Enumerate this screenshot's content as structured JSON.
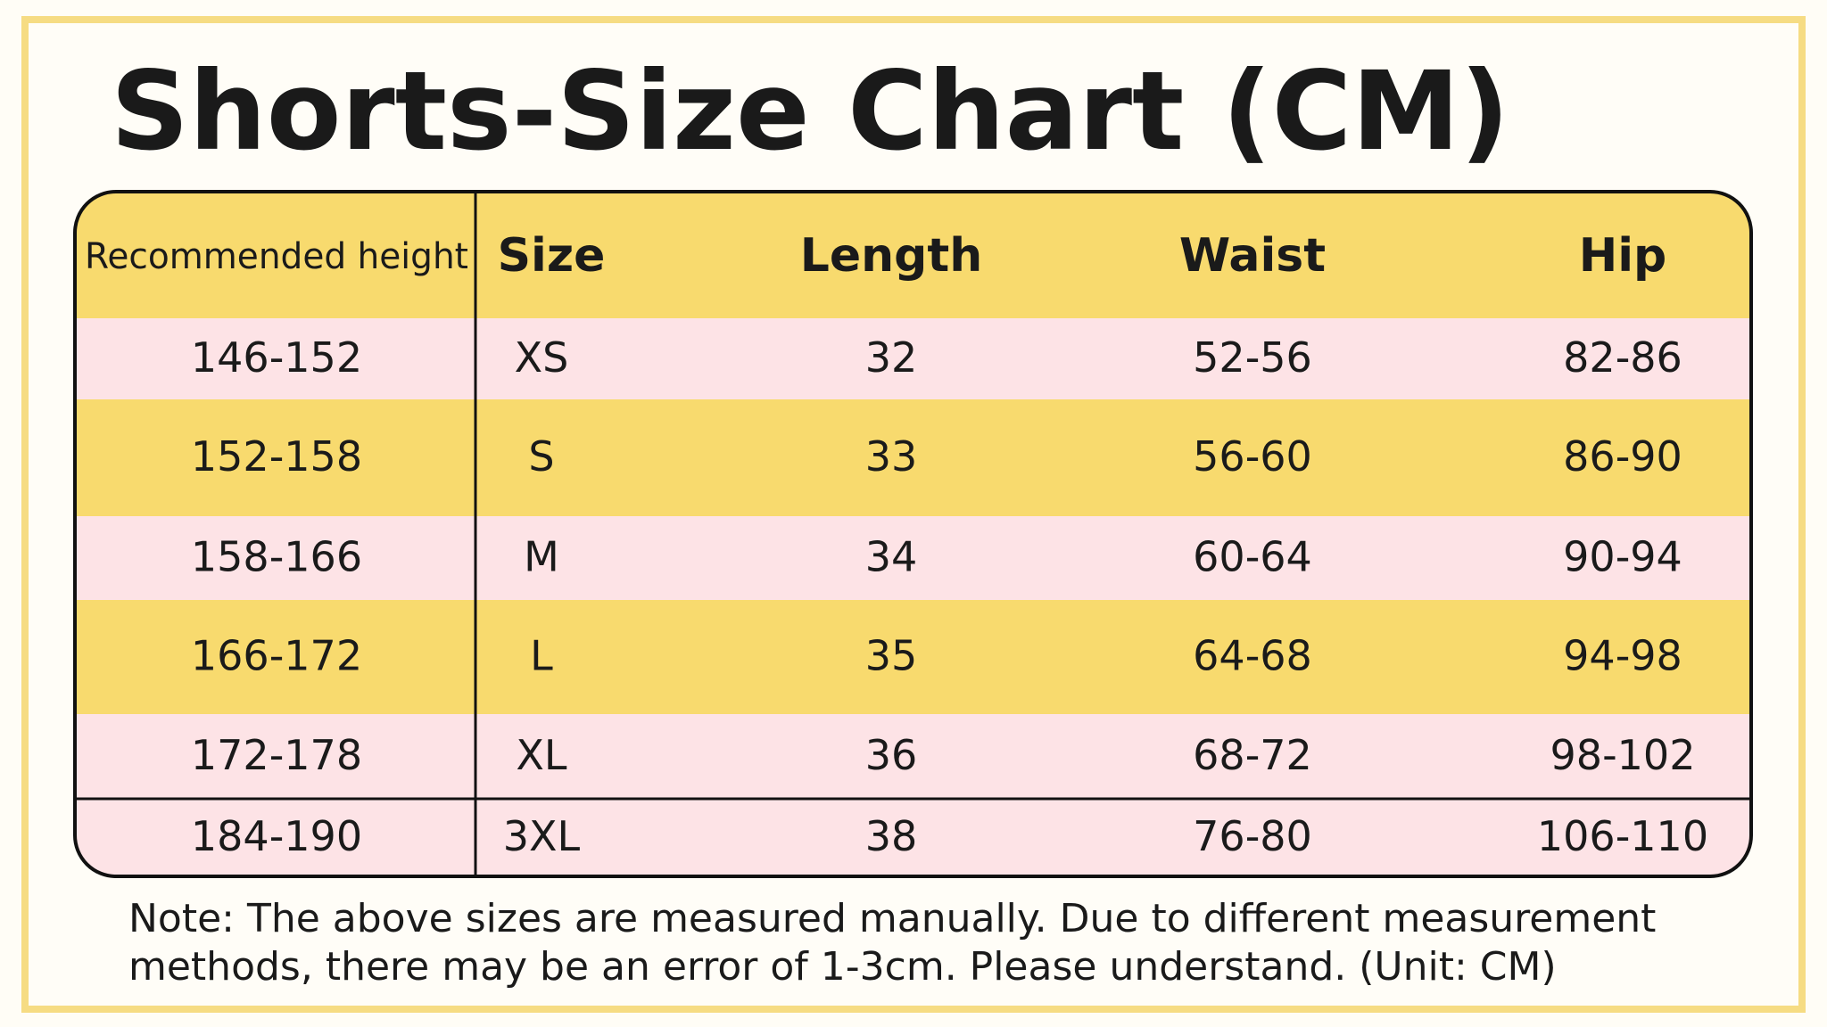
{
  "title": "Shorts-Size Chart (CM)",
  "table": {
    "headers": [
      "Recommended height",
      "Size",
      "Length",
      "Waist",
      "Hip"
    ],
    "rows": [
      [
        "146-152",
        "XS",
        "32",
        "52-56",
        "82-86"
      ],
      [
        "152-158",
        "S",
        "33",
        "56-60",
        "86-90"
      ],
      [
        "158-166",
        "M",
        "34",
        "60-64",
        "90-94"
      ],
      [
        "166-172",
        "L",
        "35",
        "64-68",
        "94-98"
      ],
      [
        "172-178",
        "XL",
        "36",
        "68-72",
        "98-102"
      ],
      [
        "184-190",
        "3XL",
        "38",
        "76-80",
        "106-110"
      ]
    ]
  },
  "note": "Note: The above sizes are measured manually. Due to different measurement methods, there may be an error of 1-3cm. Please understand. (Unit: CM)"
}
